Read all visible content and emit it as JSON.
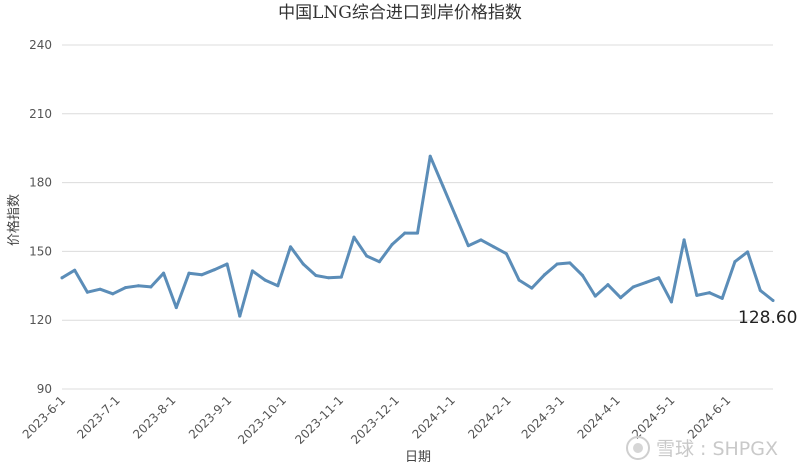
{
  "chart_data": {
    "type": "line",
    "title": "中国LNG综合进口到岸价格指数",
    "xlabel": "日期",
    "ylabel": "价格指数",
    "ylim": [
      90,
      240
    ],
    "yticks": [
      90,
      120,
      150,
      180,
      210,
      240
    ],
    "xticks": [
      {
        "label": "2023-6-1",
        "x": 0
      },
      {
        "label": "2023-7-1",
        "x": 4.3
      },
      {
        "label": "2023-8-1",
        "x": 8.7
      },
      {
        "label": "2023-9-1",
        "x": 13.1
      },
      {
        "label": "2023-10-1",
        "x": 17.4
      },
      {
        "label": "2023-11-1",
        "x": 21.9
      },
      {
        "label": "2023-12-1",
        "x": 26.3
      },
      {
        "label": "2024-1-1",
        "x": 30.7
      },
      {
        "label": "2024-2-1",
        "x": 35.1
      },
      {
        "label": "2024-3-1",
        "x": 39.3
      },
      {
        "label": "2024-4-1",
        "x": 43.7
      },
      {
        "label": "2024-5-1",
        "x": 48.0
      },
      {
        "label": "2024-6-1",
        "x": 52.4
      }
    ],
    "grid": true,
    "series": [
      {
        "color": "#5b8db8",
        "values": [
          138.5,
          141.8,
          132.2,
          133.5,
          131.5,
          134.2,
          135.0,
          134.5,
          140.5,
          125.5,
          140.5,
          139.8,
          142.0,
          144.5,
          121.8,
          141.5,
          137.5,
          135.0,
          152.0,
          144.5,
          139.5,
          138.5,
          138.8,
          156.2,
          148.0,
          145.5,
          153.0,
          158.0,
          158.0,
          191.5,
          178.5,
          165.5,
          152.5,
          155.0,
          152.0,
          149.0,
          137.5,
          134.0,
          139.8,
          144.5,
          145.0,
          139.5,
          130.5,
          135.5,
          129.8,
          134.5,
          136.5,
          138.5,
          128.0,
          155.0,
          130.8,
          132.0,
          129.5,
          145.5,
          149.8,
          133.0,
          128.6
        ]
      }
    ],
    "annotations": [
      {
        "text": "128.60"
      }
    ]
  },
  "watermark": {
    "text": "雪球 : SHPGX"
  }
}
